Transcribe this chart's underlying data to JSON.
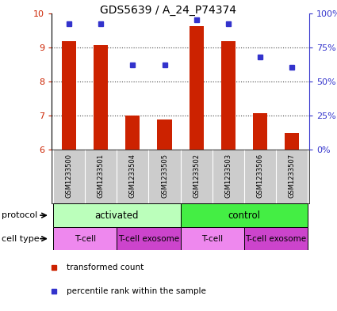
{
  "title": "GDS5639 / A_24_P74374",
  "samples": [
    "GSM1233500",
    "GSM1233501",
    "GSM1233504",
    "GSM1233505",
    "GSM1233502",
    "GSM1233503",
    "GSM1233506",
    "GSM1233507"
  ],
  "transformed_counts": [
    9.18,
    9.05,
    6.98,
    6.88,
    9.62,
    9.18,
    7.07,
    6.48
  ],
  "percentile_ranks": [
    92,
    92,
    62,
    62,
    95,
    92,
    68,
    60
  ],
  "ylim_left": [
    6,
    10
  ],
  "ylim_right": [
    0,
    100
  ],
  "yticks_left": [
    6,
    7,
    8,
    9,
    10
  ],
  "yticks_right": [
    0,
    25,
    50,
    75,
    100
  ],
  "ytick_labels_right": [
    "0%",
    "25%",
    "50%",
    "75%",
    "100%"
  ],
  "bar_color": "#cc2200",
  "dot_color": "#3333cc",
  "bar_bottom": 6.0,
  "bar_width": 0.45,
  "protocol_groups": [
    {
      "label": "activated",
      "start": 0,
      "end": 4,
      "color": "#bbffbb"
    },
    {
      "label": "control",
      "start": 4,
      "end": 8,
      "color": "#44ee44"
    }
  ],
  "cell_type_groups": [
    {
      "label": "T-cell",
      "start": 0,
      "end": 2,
      "color": "#ee88ee"
    },
    {
      "label": "T-cell exosome",
      "start": 2,
      "end": 4,
      "color": "#cc44cc"
    },
    {
      "label": "T-cell",
      "start": 4,
      "end": 6,
      "color": "#ee88ee"
    },
    {
      "label": "T-cell exosome",
      "start": 6,
      "end": 8,
      "color": "#cc44cc"
    }
  ],
  "legend_items": [
    {
      "label": "transformed count",
      "color": "#cc2200"
    },
    {
      "label": "percentile rank within the sample",
      "color": "#3333cc"
    }
  ],
  "protocol_label": "protocol",
  "cell_type_label": "cell type",
  "background_color": "#ffffff",
  "label_color_left": "#cc2200",
  "label_color_right": "#3333cc",
  "sample_bg_color": "#cccccc",
  "grid_linestyle": ":",
  "grid_linewidth": 0.8,
  "grid_color": "#444444"
}
